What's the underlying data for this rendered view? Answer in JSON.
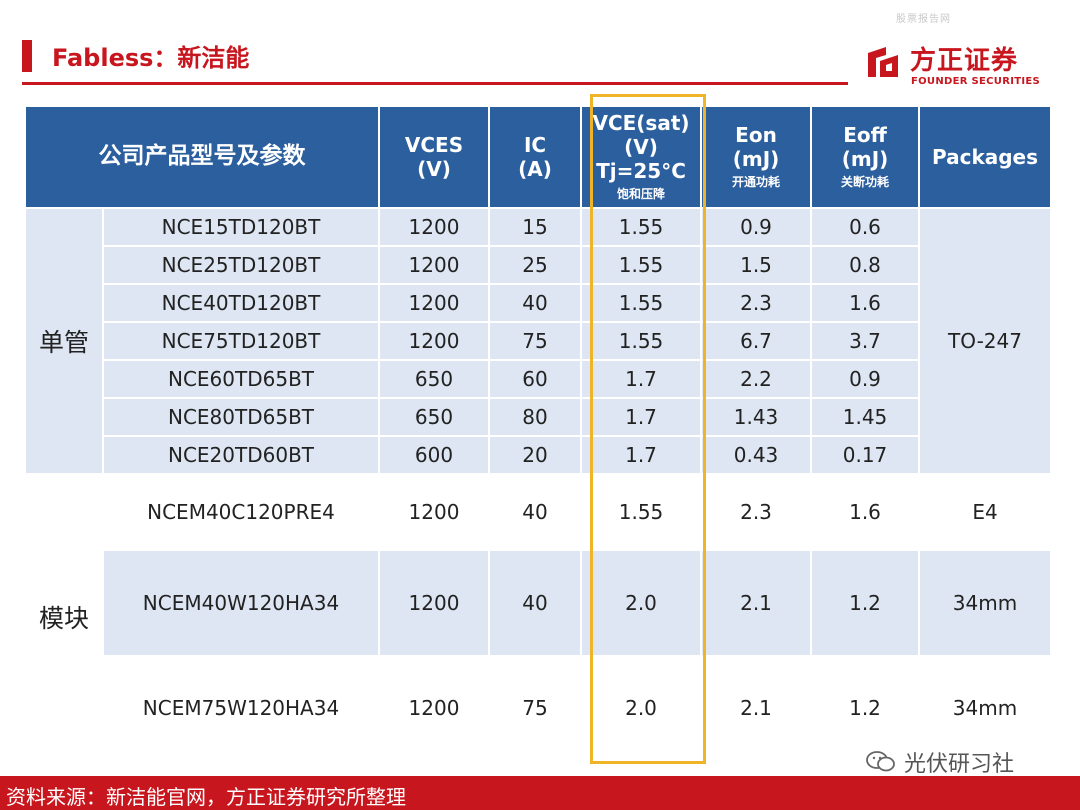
{
  "watermark_top": "股票报告网",
  "title": "Fabless：新洁能",
  "logo": {
    "cn": "方正证券",
    "en": "FOUNDER SECURITIES"
  },
  "table": {
    "headers": {
      "product": "公司产品型号及参数",
      "vces": "VCES",
      "vces_unit": "(V)",
      "ic": "IC",
      "ic_unit": "(A)",
      "vce": "VCE(sat)",
      "vce_unit": "(V)",
      "vce_cond": "Tj=25°C",
      "vce_sub": "饱和压降",
      "eon": "Eon",
      "eon_unit": "(mJ)",
      "eon_sub": "开通功耗",
      "eoff": "Eoff",
      "eoff_unit": "(mJ)",
      "eoff_sub": "关断功耗",
      "packages": "Packages"
    },
    "groups": {
      "single": "单管",
      "module": "模块"
    },
    "rows": [
      {
        "model": "NCE15TD120BT",
        "vces": "1200",
        "ic": "15",
        "vce": "1.55",
        "eon": "0.9",
        "eoff": "0.6"
      },
      {
        "model": "NCE25TD120BT",
        "vces": "1200",
        "ic": "25",
        "vce": "1.55",
        "eon": "1.5",
        "eoff": "0.8"
      },
      {
        "model": "NCE40TD120BT",
        "vces": "1200",
        "ic": "40",
        "vce": "1.55",
        "eon": "2.3",
        "eoff": "1.6"
      },
      {
        "model": "NCE75TD120BT",
        "vces": "1200",
        "ic": "75",
        "vce": "1.55",
        "eon": "6.7",
        "eoff": "3.7"
      },
      {
        "model": "NCE60TD65BT",
        "vces": "650",
        "ic": "60",
        "vce": "1.7",
        "eon": "2.2",
        "eoff": "0.9"
      },
      {
        "model": "NCE80TD65BT",
        "vces": "650",
        "ic": "80",
        "vce": "1.7",
        "eon": "1.43",
        "eoff": "1.45"
      },
      {
        "model": "NCE20TD60BT",
        "vces": "600",
        "ic": "20",
        "vce": "1.7",
        "eon": "0.43",
        "eoff": "0.17"
      },
      {
        "model": "NCEM40C120PRE4",
        "vces": "1200",
        "ic": "40",
        "vce": "1.55",
        "eon": "2.3",
        "eoff": "1.6",
        "pkg": "E4"
      },
      {
        "model": "NCEM40W120HA34",
        "vces": "1200",
        "ic": "40",
        "vce": "2.0",
        "eon": "2.1",
        "eoff": "1.2",
        "pkg": "34mm"
      },
      {
        "model": "NCEM75W120HA34",
        "vces": "1200",
        "ic": "75",
        "vce": "2.0",
        "eon": "2.1",
        "eoff": "1.2",
        "pkg": "34mm"
      }
    ],
    "single_pkg": "TO-247"
  },
  "source": "资料来源：新洁能官网，方正证券研究所整理",
  "brand": "光伏研习社",
  "colors": {
    "accent_red": "#c8161e",
    "header_blue": "#2c5f9e",
    "band_blue": "#dde6f2",
    "highlight": "#f0b428"
  }
}
